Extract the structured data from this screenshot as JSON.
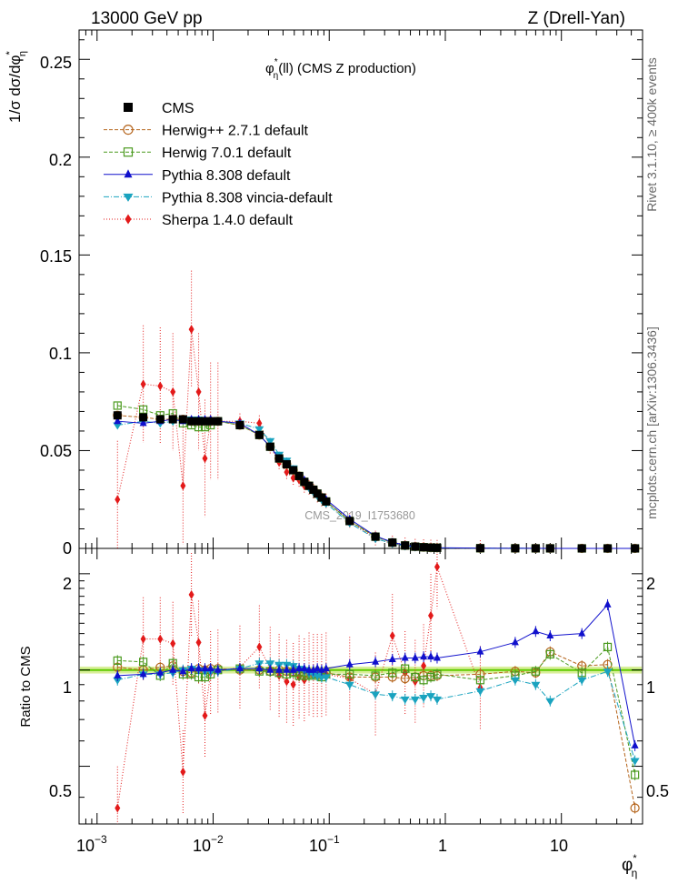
{
  "header": {
    "energy": "13000 GeV pp",
    "process": "Z (Drell-Yan)",
    "plot_title": "φ*η(ll) (CMS Z production)",
    "title_main": "φ",
    "title_sup": "*",
    "title_sub": "η",
    "title_rest": "(ll) (CMS Z production)",
    "rivet": "Rivet 3.1.10, ≥ 400k events",
    "mcplots": "mcplots.cern.ch [arXiv:1306.3436]",
    "watermark": "CMS_2019_I1753680"
  },
  "axes": {
    "ylabel_main": "1/σ dσ/dφ*η",
    "ylabel_main_text": "1/σ dσ/dφ",
    "ylabel_main_sup": "*",
    "ylabel_main_sub": "η",
    "ylabel_ratio": "Ratio to CMS",
    "xlabel": "φ*η",
    "xlabel_main": "φ",
    "xlabel_sup": "*",
    "xlabel_sub": "η",
    "main_y_ticks": [
      "0",
      "0.05",
      "0.1",
      "0.15",
      "0.2",
      "0.25"
    ],
    "ratio_y_ticks": [
      "0.5",
      "1",
      "2"
    ],
    "x_ticks": [
      "10",
      "−3",
      "10",
      "−2",
      "10",
      "−1",
      "1",
      "10"
    ]
  },
  "legend": [
    {
      "name": "CMS",
      "color": "#000000",
      "marker": "square-filled"
    },
    {
      "name": "Herwig++ 2.7.1 default",
      "color": "#b5651d",
      "marker": "circle-open"
    },
    {
      "name": "Herwig 7.0.1 default",
      "color": "#4a9a1e",
      "marker": "square-open"
    },
    {
      "name": "Pythia 8.308 default",
      "color": "#1010cc",
      "marker": "triangle-up"
    },
    {
      "name": "Pythia 8.308 vincia-default",
      "color": "#1aa3bf",
      "marker": "triangle-down"
    },
    {
      "name": "Sherpa 1.4.0 default",
      "color": "#e31a1a",
      "marker": "diamond"
    }
  ],
  "chart_data": {
    "type": "scatter",
    "title": "φ*η(ll) (CMS Z production)",
    "xlabel": "φ*η",
    "ylabel": "1/σ dσ/dφ*η",
    "xscale": "log",
    "xlim": [
      0.0007,
      50
    ],
    "ylim": [
      0,
      0.265
    ],
    "ratio_ylim": [
      0.33,
      2.4
    ],
    "x": [
      0.0015,
      0.0025,
      0.0035,
      0.0045,
      0.0055,
      0.0065,
      0.0075,
      0.0085,
      0.0095,
      0.011,
      0.017,
      0.025,
      0.031,
      0.037,
      0.043,
      0.049,
      0.055,
      0.061,
      0.067,
      0.073,
      0.079,
      0.086,
      0.094,
      0.15,
      0.25,
      0.35,
      0.45,
      0.55,
      0.65,
      0.75,
      0.85,
      2,
      4,
      6,
      8,
      15,
      25,
      43
    ],
    "series": [
      {
        "name": "CMS",
        "values": [
          0.068,
          0.067,
          0.066,
          0.066,
          0.066,
          0.065,
          0.065,
          0.065,
          0.065,
          0.065,
          0.063,
          0.058,
          0.052,
          0.046,
          0.043,
          0.04,
          0.037,
          0.034,
          0.032,
          0.03,
          0.028,
          0.026,
          0.024,
          0.014,
          0.006,
          0.003,
          0.0015,
          0.0009,
          0.0006,
          0.0004,
          0.0003,
          0.0001,
          5e-05,
          3e-05,
          2e-05,
          1e-05,
          5e-06,
          2e-06
        ],
        "ratio": [
          1,
          1,
          1,
          1,
          1,
          1,
          1,
          1,
          1,
          1,
          1,
          1,
          1,
          1,
          1,
          1,
          1,
          1,
          1,
          1,
          1,
          1,
          1,
          1,
          1,
          1,
          1,
          1,
          1,
          1,
          1,
          1,
          1,
          1,
          1,
          1,
          1,
          1
        ]
      },
      {
        "name": "Herwig++ 2.7.1 default",
        "values": [
          0.068,
          0.067,
          0.066,
          0.066,
          0.066,
          0.065,
          0.065,
          0.065,
          0.065,
          0.065,
          0.063,
          0.058,
          0.052,
          0.046,
          0.043,
          0.04,
          0.037,
          0.034,
          0.032,
          0.03,
          0.028,
          0.026,
          0.024,
          0.014,
          0.006,
          0.003,
          0.0015,
          0.0009,
          0.0006,
          0.0004,
          0.0003,
          0.0001,
          5e-05,
          3e-05,
          2e-05,
          1e-05,
          5e-06,
          2e-06
        ],
        "ratio": [
          1.02,
          1.0,
          1.02,
          1.03,
          0.99,
          0.98,
          1.01,
          1.0,
          1.01,
          1.01,
          1.0,
          1.0,
          0.99,
          1.0,
          0.99,
          0.99,
          0.98,
          0.98,
          0.97,
          0.98,
          0.97,
          0.97,
          0.98,
          0.95,
          0.95,
          0.95,
          0.94,
          0.95,
          0.96,
          0.96,
          0.96,
          0.97,
          0.99,
          0.98,
          1.14,
          1.03,
          1.04,
          0.37
        ]
      },
      {
        "name": "Herwig 7.0.1 default",
        "values": [
          0.073,
          0.071,
          0.068,
          0.069,
          0.064,
          0.063,
          0.062,
          0.062,
          0.063,
          0.065,
          0.063,
          0.058,
          0.052,
          0.046,
          0.043,
          0.04,
          0.037,
          0.034,
          0.032,
          0.03,
          0.028,
          0.026,
          0.024,
          0.014,
          0.006,
          0.003,
          0.0015,
          0.0009,
          0.0006,
          0.0004,
          0.0003,
          0.0001,
          5e-05,
          3e-05,
          2e-05,
          1e-05,
          5e-06,
          2e-06
        ],
        "ratio": [
          1.07,
          1.06,
          0.96,
          1.05,
          0.97,
          0.97,
          0.95,
          0.95,
          0.97,
          1.0,
          1.01,
          0.99,
          0.99,
          0.98,
          0.97,
          0.98,
          0.96,
          0.96,
          0.96,
          0.97,
          0.96,
          0.95,
          0.97,
          0.97,
          0.96,
          0.98,
          1.01,
          0.95,
          0.93,
          0.95,
          0.97,
          0.93,
          0.96,
          0.99,
          1.12,
          0.98,
          1.18,
          0.47
        ]
      },
      {
        "name": "Pythia 8.308 default",
        "values": [
          0.065,
          0.064,
          0.065,
          0.066,
          0.065,
          0.066,
          0.066,
          0.066,
          0.066,
          0.065,
          0.064,
          0.058,
          0.052,
          0.046,
          0.043,
          0.04,
          0.037,
          0.035,
          0.032,
          0.03,
          0.028,
          0.026,
          0.025,
          0.015,
          0.0063,
          0.0032,
          0.0016,
          0.001,
          0.00065,
          0.00045,
          0.00033,
          0.00012,
          6e-05,
          4e-05,
          2.5e-05,
          1.3e-05,
          8e-06,
          1e-06
        ],
        "ratio": [
          0.96,
          0.97,
          0.98,
          1.0,
          0.99,
          1.01,
          1.01,
          1.01,
          1.01,
          1.0,
          1.01,
          1.01,
          1.0,
          1.0,
          1.0,
          1.0,
          1.01,
          1.01,
          1.0,
          1.0,
          1.01,
          1.0,
          1.01,
          1.04,
          1.06,
          1.08,
          1.09,
          1.09,
          1.1,
          1.1,
          1.09,
          1.14,
          1.22,
          1.32,
          1.28,
          1.3,
          1.6,
          0.58
        ]
      },
      {
        "name": "Pythia 8.308 vincia-default",
        "values": [
          0.063,
          0.065,
          0.064,
          0.065,
          0.066,
          0.066,
          0.066,
          0.065,
          0.065,
          0.065,
          0.064,
          0.061,
          0.055,
          0.048,
          0.045,
          0.041,
          0.037,
          0.034,
          0.031,
          0.029,
          0.027,
          0.025,
          0.023,
          0.013,
          0.005,
          0.0025,
          0.0012,
          0.0007,
          0.0005,
          0.0003,
          0.00025,
          8e-05,
          4e-05,
          2e-05,
          1e-05,
          8e-06,
          4e-06,
          1e-06
        ],
        "ratio": [
          0.93,
          0.97,
          0.97,
          0.98,
          1.0,
          1.01,
          1.0,
          0.99,
          0.99,
          0.99,
          1.01,
          1.05,
          1.05,
          1.04,
          1.04,
          1.03,
          1.01,
          1.0,
          0.98,
          0.97,
          0.96,
          0.95,
          0.95,
          0.9,
          0.84,
          0.83,
          0.81,
          0.81,
          0.82,
          0.83,
          0.81,
          0.86,
          0.93,
          0.9,
          0.8,
          0.93,
          0.99,
          0.52
        ]
      },
      {
        "name": "Sherpa 1.4.0 default",
        "values": [
          0.025,
          0.084,
          0.083,
          0.08,
          0.032,
          0.112,
          0.08,
          0.046,
          0.065,
          0.065,
          0.065,
          0.064,
          0.052,
          0.044,
          0.039,
          0.036,
          0.035,
          0.032,
          0.031,
          0.029,
          0.027,
          0.025,
          0.024,
          0.014,
          0.005,
          0.0025,
          0.0015,
          0.0008,
          0.0006,
          0.0004,
          0.0003,
          0.0001
        ],
        "ratio": [
          0.37,
          1.25,
          1.25,
          1.21,
          0.48,
          1.72,
          1.22,
          0.72,
          0.98,
          0.99,
          1.02,
          1.18,
          1.01,
          0.96,
          0.92,
          0.9,
          0.95,
          0.93,
          0.97,
          0.96,
          0.96,
          0.96,
          0.97,
          0.94,
          0.84,
          1.28,
          0.98,
          0.92,
          1.03,
          1.48,
          2.1,
          0.88
        ]
      }
    ]
  }
}
